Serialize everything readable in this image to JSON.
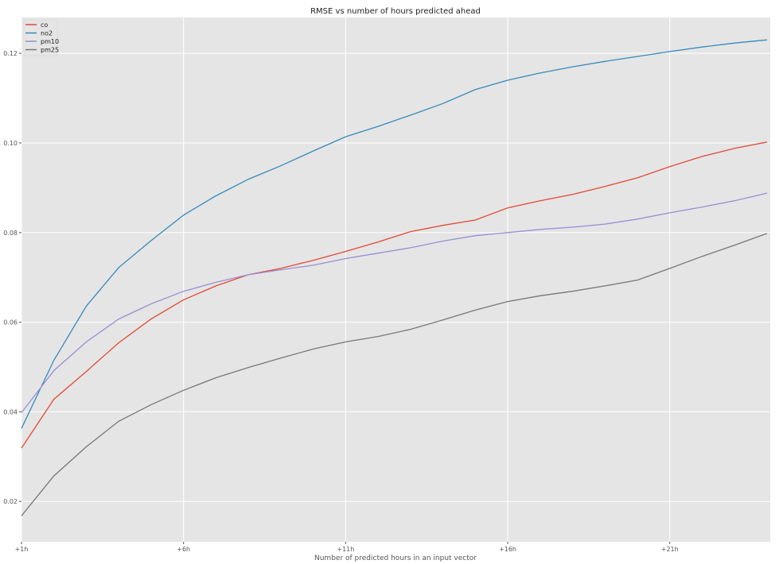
{
  "chart_data": {
    "type": "line",
    "title": "RMSE vs number of hours predicted ahead",
    "xlabel": "Number of predicted hours in an input vector",
    "ylabel": "",
    "x": [
      1,
      2,
      3,
      4,
      5,
      6,
      7,
      8,
      9,
      10,
      11,
      12,
      13,
      14,
      15,
      16,
      17,
      18,
      19,
      20,
      21,
      22,
      23,
      24
    ],
    "xticks": [
      1,
      6,
      11,
      16,
      21
    ],
    "xtick_labels": [
      "+1h",
      "+6h",
      "+11h",
      "+16h",
      "+21h"
    ],
    "yticks": [
      0.02,
      0.04,
      0.06,
      0.08,
      0.1,
      0.12
    ],
    "ytick_labels": [
      "0.02",
      "0.04",
      "0.06",
      "0.08",
      "0.10",
      "0.12"
    ],
    "xlim": [
      1,
      24.1
    ],
    "ylim": [
      0.011,
      0.128
    ],
    "grid": true,
    "background": "#e5e5e5",
    "legend_position": "top-left",
    "series": [
      {
        "name": "co",
        "color": "#e24a33",
        "values": [
          0.0319,
          0.0428,
          0.049,
          0.0554,
          0.0607,
          0.065,
          0.0681,
          0.0706,
          0.072,
          0.0738,
          0.0758,
          0.0779,
          0.0802,
          0.0816,
          0.0828,
          0.0855,
          0.0871,
          0.0885,
          0.0903,
          0.0922,
          0.0947,
          0.097,
          0.0988,
          0.1002
        ]
      },
      {
        "name": "no2",
        "color": "#348abd",
        "values": [
          0.0363,
          0.0515,
          0.0636,
          0.0722,
          0.0782,
          0.0839,
          0.0882,
          0.0919,
          0.0949,
          0.0982,
          0.1014,
          0.1037,
          0.1062,
          0.1088,
          0.1119,
          0.114,
          0.1156,
          0.117,
          0.1182,
          0.1193,
          0.1204,
          0.1214,
          0.1223,
          0.123
        ]
      },
      {
        "name": "pm10",
        "color": "#988ed5",
        "values": [
          0.0398,
          0.0492,
          0.0556,
          0.0607,
          0.0641,
          0.0669,
          0.0689,
          0.0706,
          0.0717,
          0.0727,
          0.0742,
          0.0754,
          0.0766,
          0.0781,
          0.0793,
          0.08,
          0.0807,
          0.0812,
          0.0819,
          0.083,
          0.0844,
          0.0857,
          0.0871,
          0.0888
        ]
      },
      {
        "name": "pm25",
        "color": "#777777",
        "values": [
          0.0168,
          0.0257,
          0.0322,
          0.0379,
          0.0416,
          0.0448,
          0.0476,
          0.0499,
          0.052,
          0.054,
          0.0556,
          0.0568,
          0.0584,
          0.0605,
          0.0627,
          0.0646,
          0.0659,
          0.0669,
          0.0681,
          0.0694,
          0.072,
          0.0747,
          0.0772,
          0.0798
        ]
      }
    ]
  }
}
